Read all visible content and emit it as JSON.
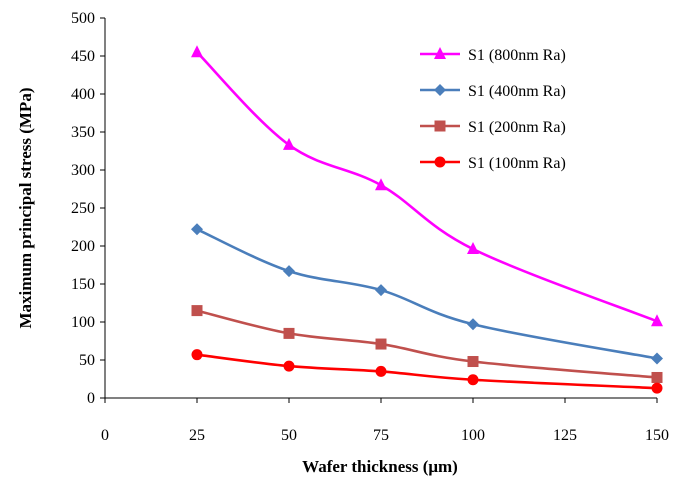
{
  "chart_data": {
    "type": "line",
    "xlabel": "Wafer thickness (μm)",
    "ylabel": "Maximum principal stress (MPa)",
    "xlim": [
      0,
      150
    ],
    "ylim": [
      0,
      500
    ],
    "xticks": [
      "0",
      "25",
      "50",
      "75",
      "100",
      "125",
      "150"
    ],
    "yticks": [
      "0",
      "50",
      "100",
      "150",
      "200",
      "250",
      "300",
      "350",
      "400",
      "450",
      "500"
    ],
    "x": [
      25,
      50,
      75,
      100,
      150
    ],
    "grid": false,
    "legend_position": "top-right",
    "series": [
      {
        "name": "S1 (800nm Ra)",
        "values": [
          455,
          333,
          280,
          196,
          101
        ],
        "color": "#ff00ff",
        "marker": "triangle"
      },
      {
        "name": "S1 (400nm Ra)",
        "values": [
          222,
          167,
          142,
          97,
          52
        ],
        "color": "#4a7ebb",
        "marker": "diamond"
      },
      {
        "name": "S1 (200nm Ra)",
        "values": [
          115,
          85,
          71,
          48,
          27
        ],
        "color": "#c0504d",
        "marker": "square"
      },
      {
        "name": "S1 (100nm Ra)",
        "values": [
          57,
          42,
          35,
          24,
          13
        ],
        "color": "#ff0000",
        "marker": "circle"
      }
    ]
  }
}
